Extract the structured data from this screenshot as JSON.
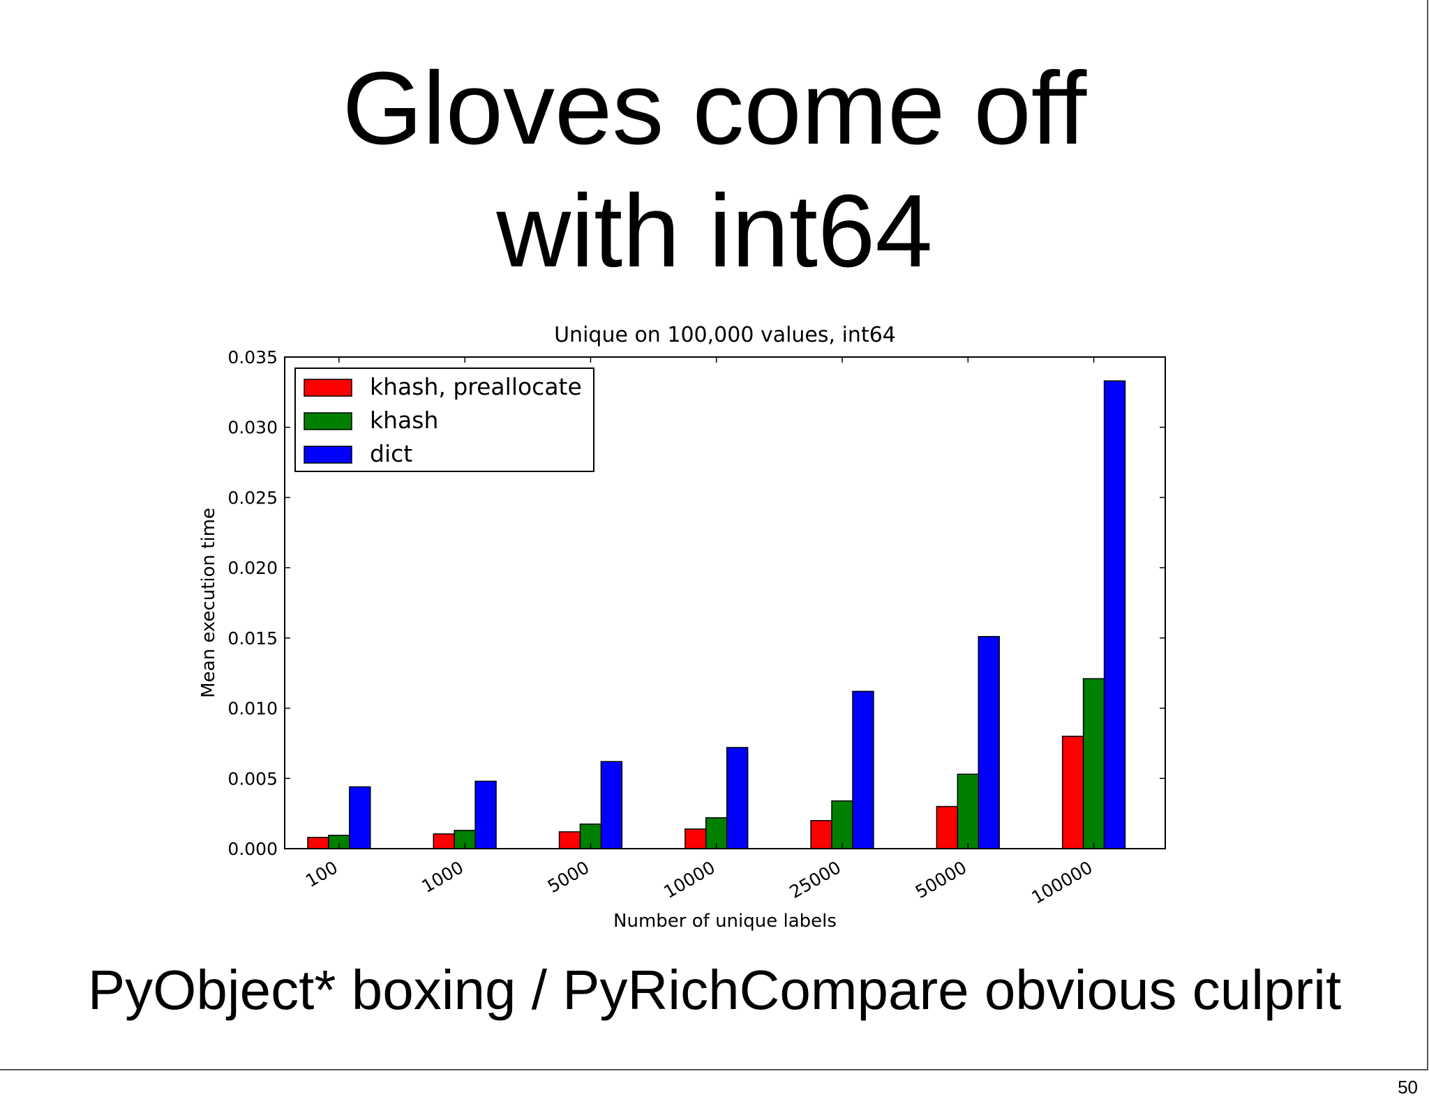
{
  "slide": {
    "title_line1": "Gloves come off",
    "title_line2": "with int64",
    "caption": "PyObject* boxing / PyRichCompare obvious culprit",
    "page_number": "50"
  },
  "chart_data": {
    "type": "bar",
    "title": "Unique on 100,000 values, int64",
    "xlabel": "Number of unique labels",
    "ylabel": "Mean execution time",
    "categories": [
      "100",
      "1000",
      "5000",
      "10000",
      "25000",
      "50000",
      "100000"
    ],
    "ylim": [
      0,
      0.035
    ],
    "yticks": [
      "0.000",
      "0.005",
      "0.010",
      "0.015",
      "0.020",
      "0.025",
      "0.030",
      "0.035"
    ],
    "legend_position": "top-left",
    "grid": false,
    "series": [
      {
        "name": "khash, preallocate",
        "color": "#ff0000",
        "values": [
          0.0008,
          0.00105,
          0.0012,
          0.0014,
          0.002,
          0.003,
          0.008
        ]
      },
      {
        "name": "khash",
        "color": "#008000",
        "values": [
          0.00095,
          0.0013,
          0.00175,
          0.0022,
          0.0034,
          0.0053,
          0.0121
        ]
      },
      {
        "name": "dict",
        "color": "#0000ff",
        "values": [
          0.0044,
          0.0048,
          0.0062,
          0.0072,
          0.0112,
          0.0151,
          0.0333
        ]
      }
    ]
  }
}
